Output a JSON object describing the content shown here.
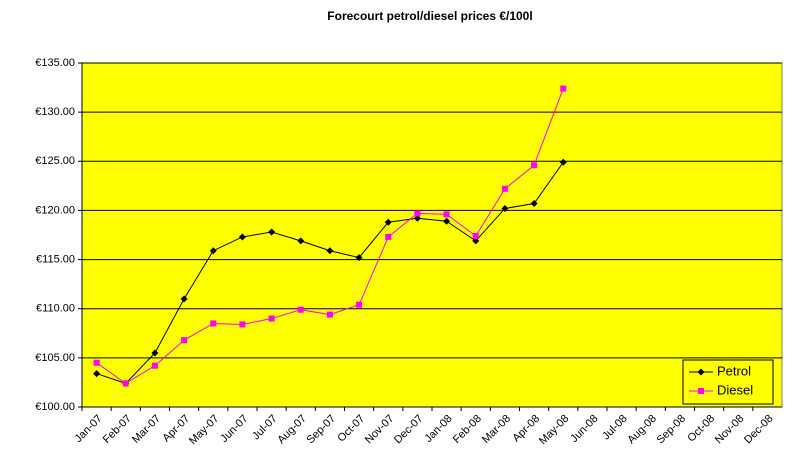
{
  "chart_data": {
    "type": "line",
    "title": "Forecourt petrol/diesel prices €/100l",
    "categories": [
      "Jan-07",
      "Feb-07",
      "Mar-07",
      "Apr-07",
      "May-07",
      "Jun-07",
      "Jul-07",
      "Aug-07",
      "Sep-07",
      "Oct-07",
      "Nov-07",
      "Dec-07",
      "Jan-08",
      "Feb-08",
      "Mar-08",
      "Apr-08",
      "May-08",
      "Jun-08",
      "Jul-08",
      "Aug-08",
      "Sep-08",
      "Oct-08",
      "Nov-08",
      "Dec-08"
    ],
    "series": [
      {
        "name": "Petrol",
        "color": "#000000",
        "marker": "diamond",
        "values": [
          103.4,
          102.4,
          105.5,
          111.0,
          115.9,
          117.3,
          117.8,
          116.9,
          115.9,
          115.2,
          118.8,
          119.2,
          118.9,
          116.9,
          120.2,
          120.7,
          124.9,
          null,
          null,
          null,
          null,
          null,
          null,
          null
        ]
      },
      {
        "name": "Diesel",
        "color": "#ff00ff",
        "marker": "square",
        "values": [
          104.5,
          102.4,
          104.2,
          106.8,
          108.5,
          108.4,
          109.0,
          109.9,
          109.4,
          110.4,
          117.3,
          119.7,
          119.6,
          117.4,
          122.2,
          124.6,
          132.4,
          null,
          null,
          null,
          null,
          null,
          null,
          null
        ]
      }
    ],
    "ylim": [
      100,
      135
    ],
    "yticks": [
      {
        "value": 100,
        "label": "€100.00"
      },
      {
        "value": 105,
        "label": "€105.00"
      },
      {
        "value": 110,
        "label": "€110.00"
      },
      {
        "value": 115,
        "label": "€115.00"
      },
      {
        "value": 120,
        "label": "€120.00"
      },
      {
        "value": 125,
        "label": "€125.00"
      },
      {
        "value": 130,
        "label": "€130.00"
      },
      {
        "value": 135,
        "label": "€135.00"
      }
    ],
    "grid": true,
    "plot_background": "#ffff00",
    "legend": "lower right"
  }
}
